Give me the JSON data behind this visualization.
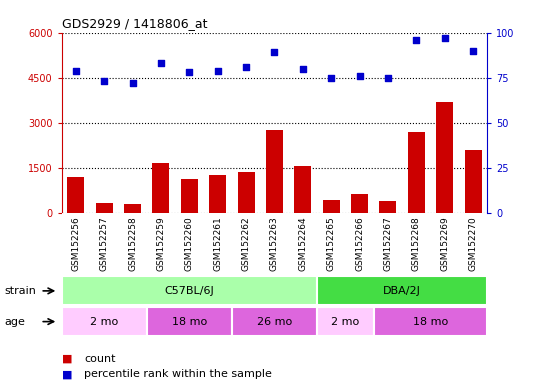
{
  "title": "GDS2929 / 1418806_at",
  "samples": [
    "GSM152256",
    "GSM152257",
    "GSM152258",
    "GSM152259",
    "GSM152260",
    "GSM152261",
    "GSM152262",
    "GSM152263",
    "GSM152264",
    "GSM152265",
    "GSM152266",
    "GSM152267",
    "GSM152268",
    "GSM152269",
    "GSM152270"
  ],
  "counts": [
    1200,
    320,
    310,
    1650,
    1150,
    1280,
    1380,
    2750,
    1550,
    450,
    650,
    400,
    2700,
    3700,
    2100
  ],
  "percentile": [
    79,
    73,
    72,
    83,
    78,
    79,
    81,
    89,
    80,
    75,
    76,
    75,
    96,
    97,
    90
  ],
  "bar_color": "#cc0000",
  "dot_color": "#0000cc",
  "ylim_left": [
    0,
    6000
  ],
  "ylim_right": [
    0,
    100
  ],
  "yticks_left": [
    0,
    1500,
    3000,
    4500,
    6000
  ],
  "yticks_right": [
    0,
    25,
    50,
    75,
    100
  ],
  "strain_groups": [
    {
      "label": "C57BL/6J",
      "start": 0,
      "end": 9,
      "color": "#aaffaa"
    },
    {
      "label": "DBA/2J",
      "start": 9,
      "end": 15,
      "color": "#44dd44"
    }
  ],
  "age_groups": [
    {
      "label": "2 mo",
      "start": 0,
      "end": 3,
      "color": "#ffccff"
    },
    {
      "label": "18 mo",
      "start": 3,
      "end": 6,
      "color": "#dd66dd"
    },
    {
      "label": "26 mo",
      "start": 6,
      "end": 9,
      "color": "#dd66dd"
    },
    {
      "label": "2 mo",
      "start": 9,
      "end": 11,
      "color": "#ffccff"
    },
    {
      "label": "18 mo",
      "start": 11,
      "end": 15,
      "color": "#dd66dd"
    }
  ],
  "strain_label": "strain",
  "age_label": "age",
  "legend_count": "count",
  "legend_percentile": "percentile rank within the sample",
  "background_color": "#ffffff",
  "tick_bg_color": "#cccccc",
  "strain_border_color": "#ffffff",
  "age_border_color": "#ffffff"
}
